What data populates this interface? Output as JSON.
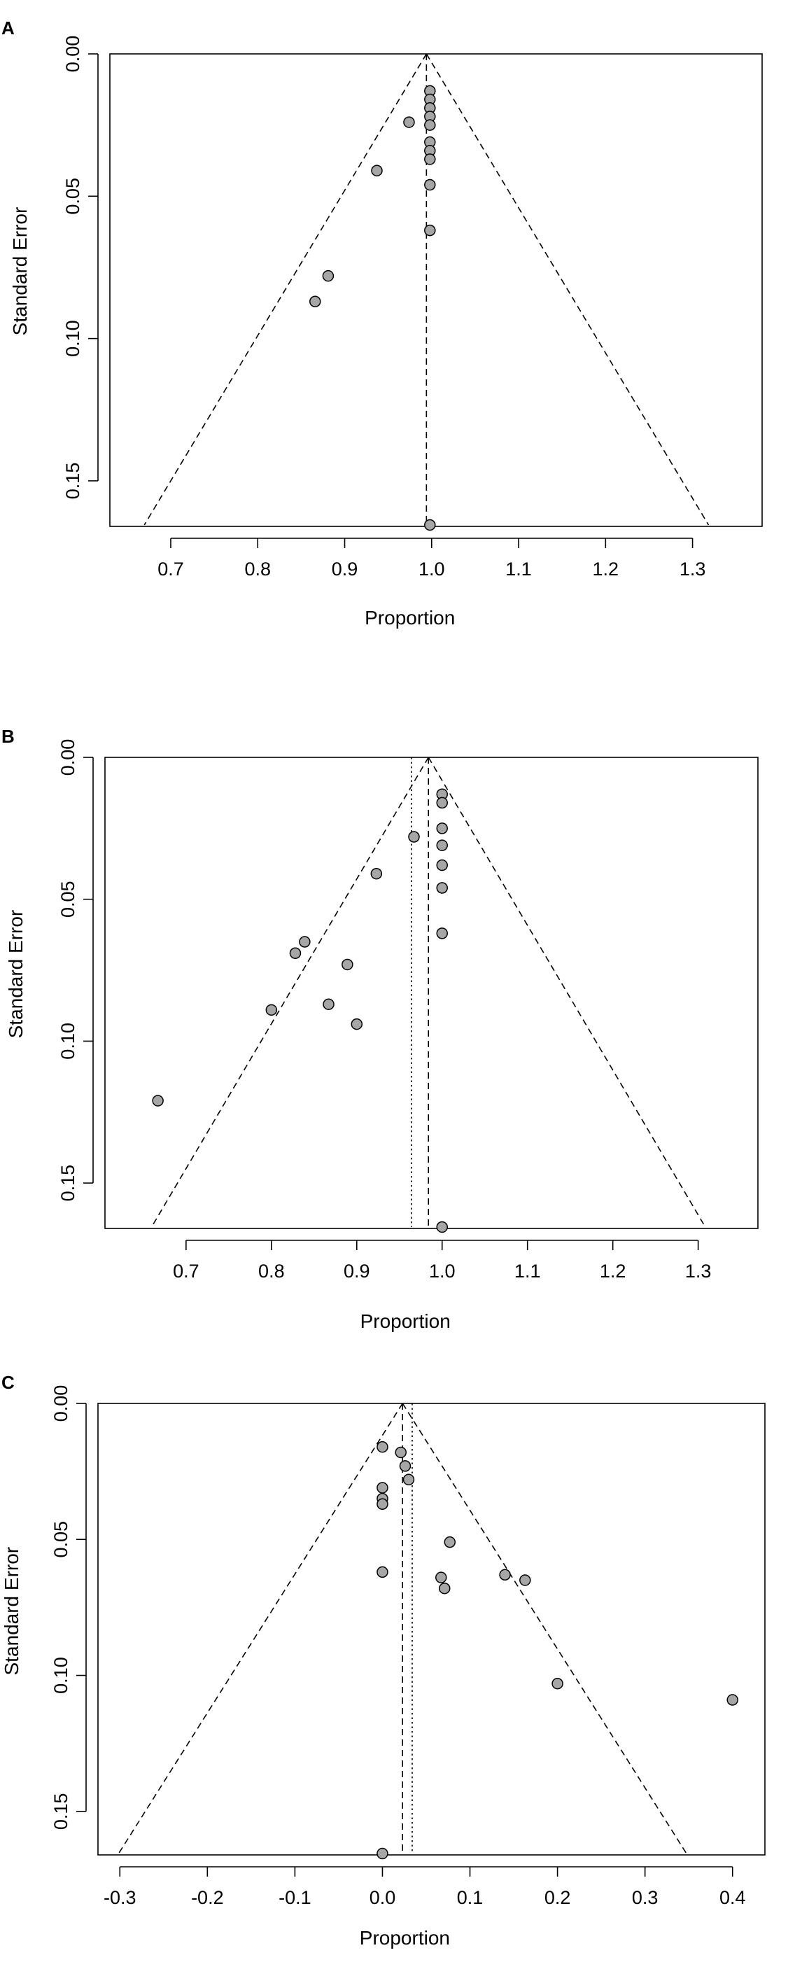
{
  "chart_data": [
    {
      "type": "scatter",
      "panel_label": "A",
      "title": "",
      "xlabel": "Proportion",
      "ylabel": "Standard Error",
      "xlim": [
        0.63,
        1.38
      ],
      "ylim": [
        0.0,
        0.166
      ],
      "y_inverted": true,
      "x_ticks": [
        0.7,
        0.8,
        0.9,
        1.0,
        1.1,
        1.2,
        1.3
      ],
      "x_tick_labels": [
        "0.7",
        "0.8",
        "0.9",
        "1.0",
        "1.1",
        "1.2",
        "1.3"
      ],
      "y_ticks": [
        0.0,
        0.05,
        0.1,
        0.15
      ],
      "y_tick_labels": [
        "0.00",
        "0.05",
        "0.10",
        "0.15"
      ],
      "funnel": {
        "center": 0.994,
        "se_max": 0.1655
      },
      "vertical_lines": [
        {
          "x": 0.994,
          "style": "dashed"
        }
      ],
      "points": [
        {
          "x": 0.998,
          "se": 0.013
        },
        {
          "x": 0.998,
          "se": 0.016
        },
        {
          "x": 0.998,
          "se": 0.019
        },
        {
          "x": 0.998,
          "se": 0.022
        },
        {
          "x": 0.998,
          "se": 0.025
        },
        {
          "x": 0.974,
          "se": 0.024
        },
        {
          "x": 0.998,
          "se": 0.031
        },
        {
          "x": 0.998,
          "se": 0.034
        },
        {
          "x": 0.998,
          "se": 0.037
        },
        {
          "x": 0.937,
          "se": 0.041
        },
        {
          "x": 0.998,
          "se": 0.046
        },
        {
          "x": 0.998,
          "se": 0.062
        },
        {
          "x": 0.881,
          "se": 0.078
        },
        {
          "x": 0.866,
          "se": 0.087
        },
        {
          "x": 0.998,
          "se": 0.1655
        }
      ]
    },
    {
      "type": "scatter",
      "panel_label": "B",
      "title": "",
      "xlabel": "Proportion",
      "ylabel": "Standard Error",
      "xlim": [
        0.605,
        1.37
      ],
      "ylim": [
        0.0,
        0.166
      ],
      "y_inverted": true,
      "x_ticks": [
        0.7,
        0.8,
        0.9,
        1.0,
        1.1,
        1.2,
        1.3
      ],
      "x_tick_labels": [
        "0.7",
        "0.8",
        "0.9",
        "1.0",
        "1.1",
        "1.2",
        "1.3"
      ],
      "y_ticks": [
        0.0,
        0.05,
        0.1,
        0.15
      ],
      "y_tick_labels": [
        "0.00",
        "0.05",
        "0.10",
        "0.15"
      ],
      "funnel": {
        "center": 0.984,
        "se_max": 0.1655
      },
      "vertical_lines": [
        {
          "x": 0.984,
          "style": "dashed"
        },
        {
          "x": 0.964,
          "style": "dotted"
        }
      ],
      "points": [
        {
          "x": 1.0,
          "se": 0.013
        },
        {
          "x": 1.0,
          "se": 0.016
        },
        {
          "x": 1.0,
          "se": 0.025
        },
        {
          "x": 0.967,
          "se": 0.028
        },
        {
          "x": 1.0,
          "se": 0.031
        },
        {
          "x": 1.0,
          "se": 0.038
        },
        {
          "x": 0.923,
          "se": 0.041
        },
        {
          "x": 1.0,
          "se": 0.046
        },
        {
          "x": 1.0,
          "se": 0.062
        },
        {
          "x": 0.839,
          "se": 0.065
        },
        {
          "x": 0.828,
          "se": 0.069
        },
        {
          "x": 0.889,
          "se": 0.073
        },
        {
          "x": 0.867,
          "se": 0.087
        },
        {
          "x": 0.8,
          "se": 0.089
        },
        {
          "x": 0.9,
          "se": 0.094
        },
        {
          "x": 0.667,
          "se": 0.121
        },
        {
          "x": 1.0,
          "se": 0.1655
        }
      ]
    },
    {
      "type": "scatter",
      "panel_label": "C",
      "title": "",
      "xlabel": "Proportion",
      "ylabel": "Standard Error",
      "xlim": [
        -0.325,
        0.437
      ],
      "ylim": [
        0.0,
        0.166
      ],
      "y_inverted": true,
      "x_ticks": [
        -0.3,
        -0.2,
        -0.1,
        0.0,
        0.1,
        0.2,
        0.3,
        0.4
      ],
      "x_tick_labels": [
        "-0.3",
        "-0.2",
        "-0.1",
        "0.0",
        "0.1",
        "0.2",
        "0.3",
        "0.4"
      ],
      "y_ticks": [
        0.0,
        0.05,
        0.1,
        0.15
      ],
      "y_tick_labels": [
        "0.00",
        "0.05",
        "0.10",
        "0.15"
      ],
      "funnel": {
        "center": 0.023,
        "se_max": 0.1655
      },
      "vertical_lines": [
        {
          "x": 0.023,
          "style": "dashed"
        },
        {
          "x": 0.034,
          "style": "dotted"
        }
      ],
      "points": [
        {
          "x": 0.0,
          "se": 0.016
        },
        {
          "x": 0.021,
          "se": 0.018
        },
        {
          "x": 0.026,
          "se": 0.023
        },
        {
          "x": 0.03,
          "se": 0.028
        },
        {
          "x": 0.0,
          "se": 0.031
        },
        {
          "x": 0.0,
          "se": 0.035
        },
        {
          "x": 0.0,
          "se": 0.037
        },
        {
          "x": 0.077,
          "se": 0.051
        },
        {
          "x": 0.0,
          "se": 0.062
        },
        {
          "x": 0.14,
          "se": 0.063
        },
        {
          "x": 0.067,
          "se": 0.064
        },
        {
          "x": 0.163,
          "se": 0.065
        },
        {
          "x": 0.071,
          "se": 0.068
        },
        {
          "x": 0.2,
          "se": 0.103
        },
        {
          "x": 0.4,
          "se": 0.109
        },
        {
          "x": 0.0,
          "se": 0.1655
        }
      ]
    }
  ]
}
